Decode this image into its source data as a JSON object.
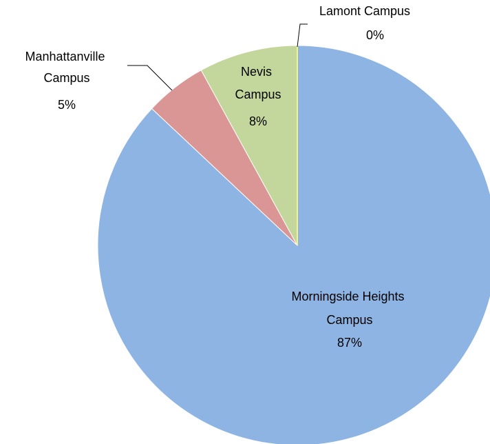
{
  "chart_data": {
    "type": "pie",
    "categories": [
      "Morningside Heights Campus",
      "Manhattanville Campus",
      "Nevis Campus",
      "Lamont Campus"
    ],
    "values": [
      87,
      5,
      8,
      0
    ],
    "value_labels": [
      "87%",
      "5%",
      "8%",
      "0%"
    ],
    "colors": [
      "#8eb4e3",
      "#d99694",
      "#c3d69b",
      "#f5f28a"
    ]
  }
}
